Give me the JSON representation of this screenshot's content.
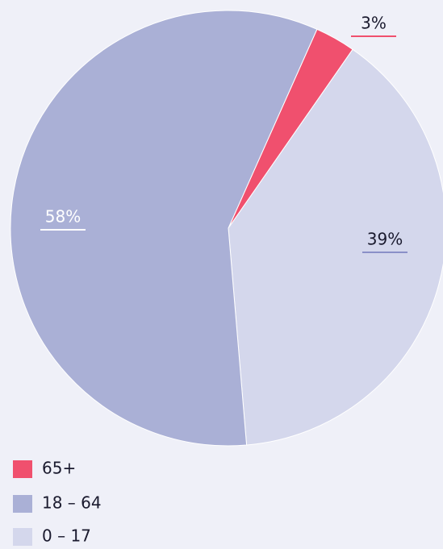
{
  "chart_data": {
    "type": "pie",
    "categories": [
      "65+",
      "18 – 64",
      "0 – 17"
    ],
    "values": [
      3,
      58,
      39
    ],
    "value_labels": [
      "3%",
      "58%",
      "39%"
    ],
    "colors": [
      "#f0506e",
      "#aab0d6",
      "#d4d7ec"
    ],
    "legend": "bottom-left"
  }
}
